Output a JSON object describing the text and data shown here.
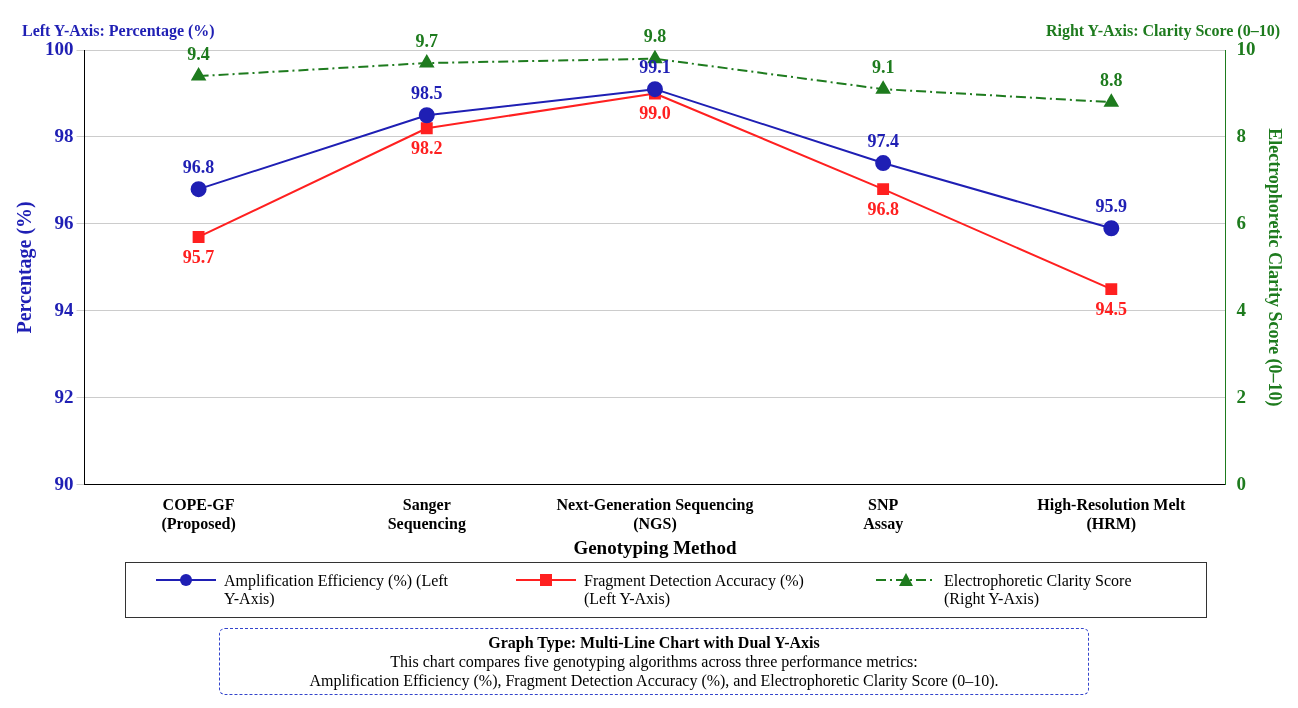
{
  "chart_data": {
    "type": "line",
    "categories": [
      "COPE-GF (Proposed)",
      "Sanger Sequencing",
      "Next-Generation Sequencing (NGS)",
      "SNP Assay",
      "High-Resolution Melt (HRM)"
    ],
    "xlabel": "Genotyping Method",
    "ylabel": "Percentage (%)",
    "y2label": "Electrophoretic Clarity Score (0–10)",
    "ylim": [
      90,
      100
    ],
    "yticks": [
      90,
      92,
      94,
      96,
      98,
      100
    ],
    "y2lim": [
      0,
      10
    ],
    "y2ticks": [
      0,
      2,
      4,
      6,
      8,
      10
    ],
    "grid": "y",
    "legend": "bottom",
    "data_labels": true,
    "series": [
      {
        "name": "Amplification Efficiency (%) (Left Y-Axis)",
        "color": "#1f1fb4",
        "values": [
          96.8,
          98.5,
          99.1,
          97.4,
          95.9
        ],
        "marker": "circle",
        "line_style": "solid"
      },
      {
        "name": "Fragment Detection Accuracy (%) (Left Y-Axis)",
        "color": "#ff2020",
        "values": [
          95.7,
          98.2,
          99.0,
          96.8,
          94.5
        ],
        "value_labels": [
          "95.7",
          "98.2",
          "99.0",
          "96.8",
          "94.5"
        ],
        "marker": "square",
        "line_style": "solid"
      },
      {
        "name": "Electrophoretic Clarity Score (Right Y-Axis)",
        "color": "#1e7b1e",
        "values": [
          9.4,
          9.7,
          9.8,
          9.1,
          8.8
        ],
        "marker": "triangle",
        "line_style": "dashed",
        "axis": "y2"
      }
    ],
    "annotations": [
      "Left Y-Axis: Percentage (%)",
      "Right Y-Axis: Clarity Score (0–10)",
      "Graph Type: Multi-Line Chart with Dual Y-Axis",
      "This chart compares five genotyping algorithms across three performance metrics:",
      "Amplification Efficiency (%), Fragment Detection Accuracy (%), and Electrophoretic Clarity Score (0–10)."
    ]
  }
}
